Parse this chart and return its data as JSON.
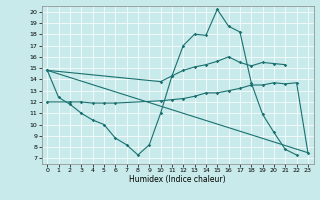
{
  "xlabel": "Humidex (Indice chaleur)",
  "bg_color": "#c8eaea",
  "line_color": "#1a7070",
  "xlim": [
    -0.5,
    23.5
  ],
  "ylim": [
    6.5,
    20.5
  ],
  "xticks": [
    0,
    1,
    2,
    3,
    4,
    5,
    6,
    7,
    8,
    9,
    10,
    11,
    12,
    13,
    14,
    15,
    16,
    17,
    18,
    19,
    20,
    21,
    22,
    23
  ],
  "yticks": [
    7,
    8,
    9,
    10,
    11,
    12,
    13,
    14,
    15,
    16,
    17,
    18,
    19,
    20
  ],
  "line1_v": [
    [
      0,
      14.8
    ],
    [
      1,
      12.4
    ],
    [
      2,
      11.8
    ],
    [
      3,
      11.0
    ],
    [
      4,
      10.4
    ],
    [
      5,
      10.0
    ],
    [
      6,
      8.8
    ],
    [
      7,
      8.2
    ],
    [
      8,
      7.3
    ],
    [
      9,
      8.2
    ],
    [
      10,
      11.0
    ],
    [
      11,
      14.3
    ],
    [
      12,
      17.0
    ],
    [
      13,
      18.0
    ],
    [
      14,
      17.9
    ],
    [
      15,
      20.2
    ],
    [
      16,
      18.7
    ],
    [
      17,
      18.2
    ],
    [
      18,
      13.7
    ],
    [
      19,
      10.9
    ],
    [
      20,
      9.3
    ],
    [
      21,
      7.8
    ],
    [
      22,
      7.3
    ]
  ],
  "line2_upper": [
    [
      0,
      14.8
    ],
    [
      10,
      13.8
    ],
    [
      11,
      14.3
    ],
    [
      12,
      14.8
    ],
    [
      13,
      15.1
    ],
    [
      14,
      15.3
    ],
    [
      15,
      15.6
    ],
    [
      16,
      16.0
    ],
    [
      17,
      15.5
    ],
    [
      18,
      15.2
    ],
    [
      19,
      15.5
    ],
    [
      20,
      15.4
    ],
    [
      21,
      15.3
    ]
  ],
  "line3_mid": [
    [
      0,
      12.0
    ],
    [
      2,
      12.0
    ],
    [
      3,
      12.0
    ],
    [
      4,
      11.9
    ],
    [
      5,
      11.9
    ],
    [
      6,
      11.9
    ],
    [
      10,
      12.1
    ],
    [
      11,
      12.2
    ],
    [
      12,
      12.3
    ],
    [
      13,
      12.5
    ],
    [
      14,
      12.8
    ],
    [
      15,
      12.8
    ],
    [
      16,
      13.0
    ],
    [
      17,
      13.2
    ],
    [
      18,
      13.5
    ],
    [
      19,
      13.5
    ],
    [
      20,
      13.7
    ],
    [
      21,
      13.6
    ],
    [
      22,
      13.7
    ],
    [
      23,
      7.5
    ]
  ],
  "line4_diag": [
    [
      0,
      14.8
    ],
    [
      23,
      7.5
    ]
  ]
}
